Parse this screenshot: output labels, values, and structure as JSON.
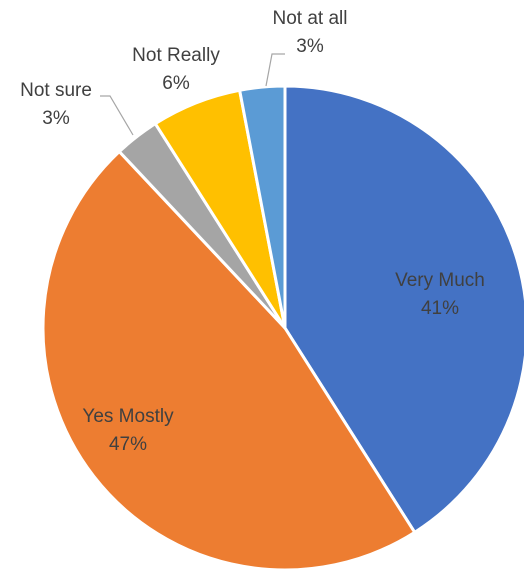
{
  "chart_data": {
    "type": "pie",
    "title": "",
    "slices": [
      {
        "label": "Very Much",
        "pct_label": "41%",
        "value": 41,
        "color": "#4472C4",
        "label_color": "#404040"
      },
      {
        "label": "Yes Mostly",
        "pct_label": "47%",
        "value": 47,
        "color": "#ED7D31",
        "label_color": "#404040"
      },
      {
        "label": "Not sure",
        "pct_label": "3%",
        "value": 3,
        "color": "#A5A5A5",
        "label_color": "#404040"
      },
      {
        "label": "Not Really",
        "pct_label": "6%",
        "value": 6,
        "color": "#FFC000",
        "label_color": "#404040"
      },
      {
        "label": "Not at all",
        "pct_label": "3%",
        "value": 3,
        "color": "#5B9BD5",
        "label_color": "#404040"
      }
    ],
    "start_angle": "12 o'clock",
    "direction": "clockwise",
    "legend": "none"
  }
}
